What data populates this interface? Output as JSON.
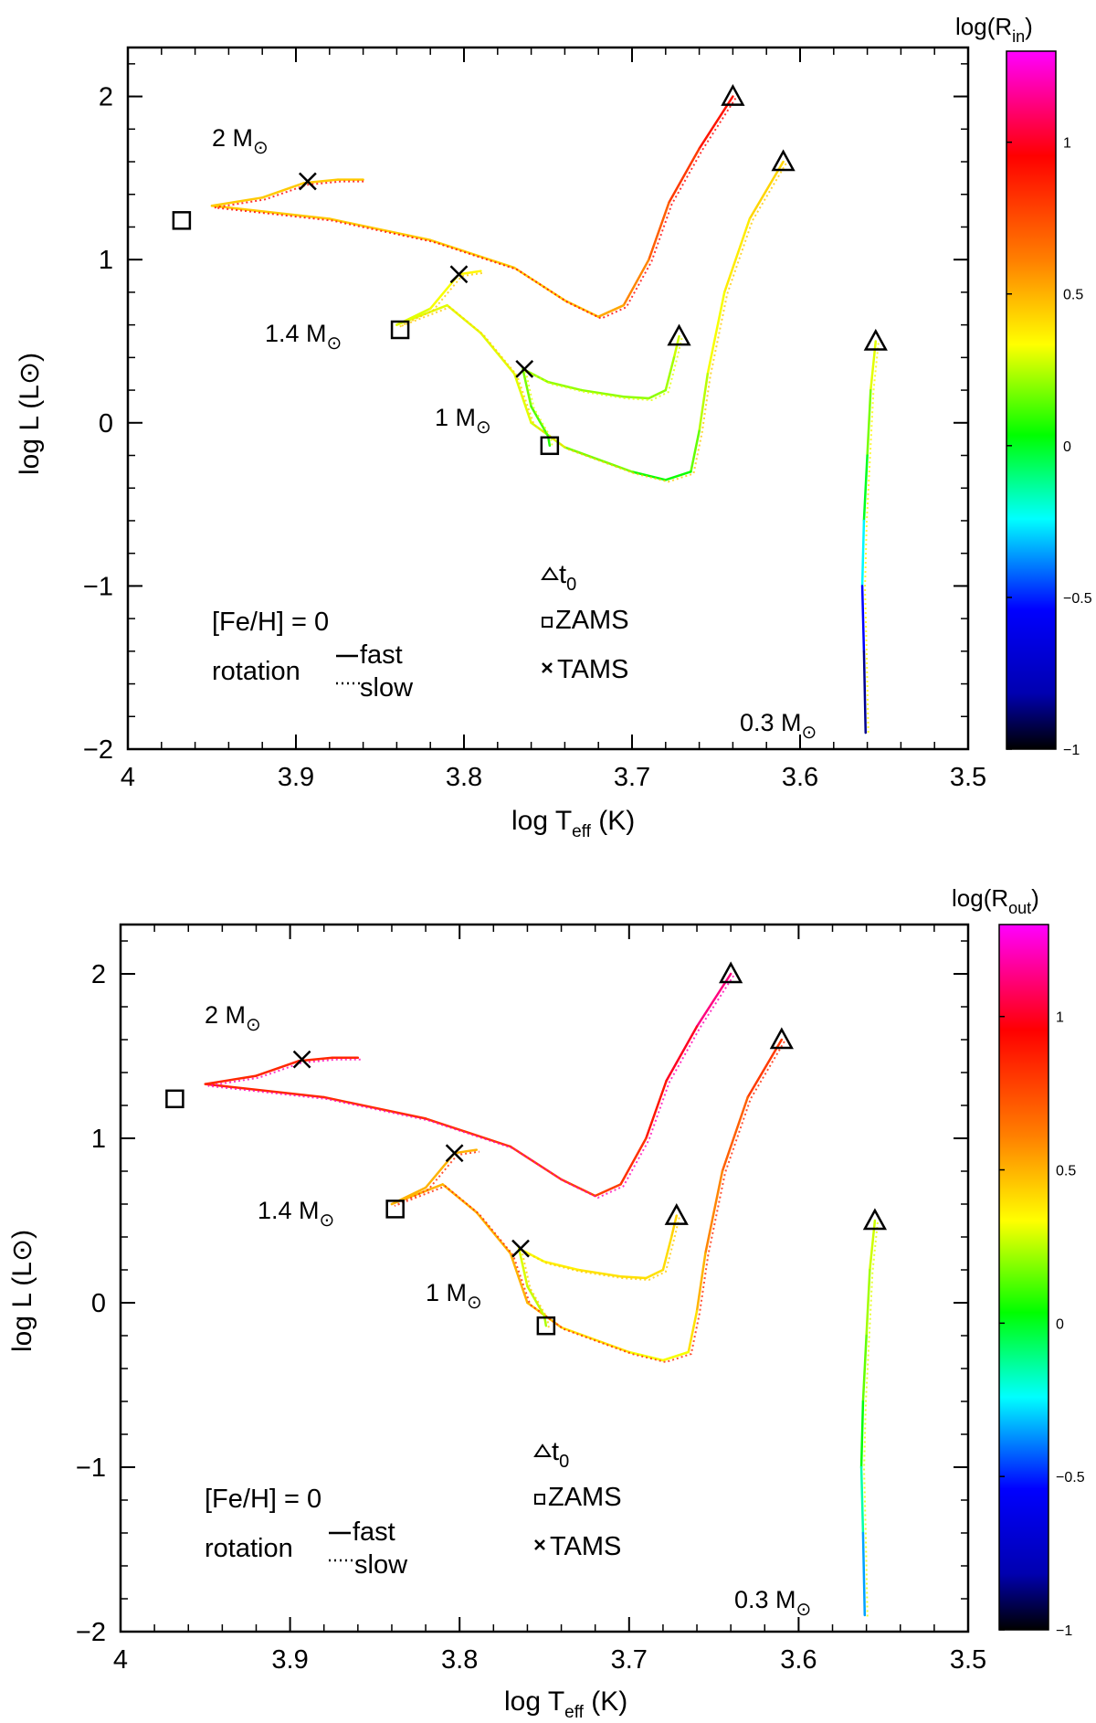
{
  "chart_data": [
    {
      "type": "line",
      "panel": "top",
      "xlabel_main": "log T",
      "xlabel_sub": "eff",
      "xlabel_unit": " (K)",
      "ylabel_main": "log L (L",
      "ylabel_tail": ")",
      "xlim": [
        4.0,
        3.5
      ],
      "ylim": [
        -2,
        2.3
      ],
      "xticks": [
        4,
        3.9,
        3.8,
        3.7,
        3.6,
        3.5
      ],
      "xtick_labels": [
        "4",
        "3.9",
        "3.8",
        "3.7",
        "3.6",
        "3.5"
      ],
      "yticks": [
        -2,
        -1,
        0,
        1,
        2
      ],
      "ytick_labels": [
        "−2",
        "−1",
        "0",
        "1",
        "2"
      ],
      "colorbar": {
        "label_main": "log(R",
        "label_sub": "in",
        "label_tail": ")",
        "range": [
          -1,
          1.3
        ],
        "ticks": [
          -1,
          -0.5,
          0,
          0.5,
          1
        ],
        "tick_labels": [
          "−1",
          "−0.5",
          "0",
          "0.5",
          "1"
        ]
      },
      "series": [
        {
          "name": "2 Msun",
          "label": "2 M",
          "points": [
            [
              3.64,
              2.0
            ],
            [
              3.66,
              1.68
            ],
            [
              3.678,
              1.35
            ],
            [
              3.69,
              1.0
            ],
            [
              3.705,
              0.72
            ],
            [
              3.72,
              0.65
            ],
            [
              3.74,
              0.75
            ],
            [
              3.77,
              0.95
            ],
            [
              3.82,
              1.12
            ],
            [
              3.88,
              1.25
            ],
            [
              3.95,
              1.33
            ],
            [
              3.92,
              1.38
            ],
            [
              3.895,
              1.47
            ],
            [
              3.875,
              1.49
            ],
            [
              3.86,
              1.49
            ]
          ],
          "cvals": [
            0.95,
            0.85,
            0.75,
            0.65,
            0.55,
            0.5,
            0.45,
            0.45,
            0.45,
            0.45,
            0.45,
            0.45,
            0.45,
            0.45,
            0.45
          ],
          "zams": [
            3.968,
            1.24
          ],
          "tams": [
            3.893,
            1.48
          ],
          "t0": [
            3.64,
            2.0
          ]
        },
        {
          "name": "1.4 Msun",
          "label": "1.4 M",
          "points": [
            [
              3.61,
              1.6
            ],
            [
              3.63,
              1.25
            ],
            [
              3.645,
              0.8
            ],
            [
              3.655,
              0.3
            ],
            [
              3.66,
              -0.05
            ],
            [
              3.665,
              -0.3
            ],
            [
              3.68,
              -0.35
            ],
            [
              3.7,
              -0.3
            ],
            [
              3.74,
              -0.15
            ],
            [
              3.76,
              0.0
            ],
            [
              3.77,
              0.3
            ],
            [
              3.79,
              0.55
            ],
            [
              3.81,
              0.72
            ],
            [
              3.84,
              0.6
            ],
            [
              3.82,
              0.7
            ],
            [
              3.803,
              0.91
            ],
            [
              3.79,
              0.93
            ]
          ],
          "cvals": [
            0.45,
            0.4,
            0.35,
            0.3,
            0.2,
            0.1,
            0.0,
            0.1,
            0.25,
            0.3,
            0.3,
            0.3,
            0.3,
            0.3,
            0.3,
            0.35,
            0.35
          ],
          "zams": [
            3.838,
            0.57
          ],
          "tams": [
            3.803,
            0.91
          ],
          "t0": [
            3.61,
            1.6
          ]
        },
        {
          "name": "1 Msun",
          "label": "1 M",
          "points": [
            [
              3.672,
              0.53
            ],
            [
              3.675,
              0.4
            ],
            [
              3.68,
              0.2
            ],
            [
              3.69,
              0.15
            ],
            [
              3.705,
              0.16
            ],
            [
              3.73,
              0.2
            ],
            [
              3.75,
              0.25
            ],
            [
              3.765,
              0.33
            ],
            [
              3.76,
              0.1
            ],
            [
              3.75,
              -0.08
            ],
            [
              3.749,
              -0.14
            ]
          ],
          "cvals": [
            0.3,
            0.25,
            0.2,
            0.2,
            0.2,
            0.2,
            0.2,
            0.2,
            0.15,
            0.1,
            0.05
          ],
          "zams": [
            3.749,
            -0.14
          ],
          "tams": [
            3.764,
            0.33
          ],
          "t0": [
            3.672,
            0.53
          ]
        },
        {
          "name": "0.3 Msun",
          "label": "0.3 M",
          "points": [
            [
              3.555,
              0.5
            ],
            [
              3.558,
              0.2
            ],
            [
              3.56,
              -0.2
            ],
            [
              3.562,
              -0.6
            ],
            [
              3.563,
              -1.0
            ],
            [
              3.562,
              -1.4
            ],
            [
              3.561,
              -1.9
            ]
          ],
          "cvals": [
            0.35,
            0.25,
            0.1,
            -0.1,
            -0.4,
            -0.7,
            -1.0
          ],
          "zams": null,
          "tams": null,
          "t0": [
            3.555,
            0.5
          ]
        }
      ]
    },
    {
      "type": "line",
      "panel": "bottom",
      "xlabel_main": "log T",
      "xlabel_sub": "eff",
      "xlabel_unit": " (K)",
      "ylabel_main": "log L (L",
      "ylabel_tail": ")",
      "xlim": [
        4.0,
        3.5
      ],
      "ylim": [
        -2,
        2.3
      ],
      "xticks": [
        4,
        3.9,
        3.8,
        3.7,
        3.6,
        3.5
      ],
      "xtick_labels": [
        "4",
        "3.9",
        "3.8",
        "3.7",
        "3.6",
        "3.5"
      ],
      "yticks": [
        -2,
        -1,
        0,
        1,
        2
      ],
      "ytick_labels": [
        "−2",
        "−1",
        "0",
        "1",
        "2"
      ],
      "colorbar": {
        "label_main": "log(R",
        "label_sub": "out",
        "label_tail": ")",
        "range": [
          -1,
          1.3
        ],
        "ticks": [
          -1,
          -0.5,
          0,
          0.5,
          1
        ],
        "tick_labels": [
          "−1",
          "−0.5",
          "0",
          "0.5",
          "1"
        ]
      },
      "series": [
        {
          "name": "2 Msun",
          "label": "2 M",
          "points": [
            [
              3.64,
              2.0
            ],
            [
              3.66,
              1.68
            ],
            [
              3.678,
              1.35
            ],
            [
              3.69,
              1.0
            ],
            [
              3.705,
              0.72
            ],
            [
              3.72,
              0.65
            ],
            [
              3.74,
              0.75
            ],
            [
              3.77,
              0.95
            ],
            [
              3.82,
              1.12
            ],
            [
              3.88,
              1.25
            ],
            [
              3.95,
              1.33
            ],
            [
              3.92,
              1.38
            ],
            [
              3.895,
              1.47
            ],
            [
              3.875,
              1.49
            ],
            [
              3.86,
              1.49
            ]
          ],
          "cvals": [
            1.2,
            1.05,
            0.95,
            0.85,
            0.8,
            0.78,
            0.78,
            0.8,
            0.82,
            0.85,
            0.85,
            0.85,
            0.85,
            0.85,
            0.85
          ],
          "zams": [
            3.968,
            1.24
          ],
          "tams": [
            3.893,
            1.48
          ],
          "t0": [
            3.64,
            2.0
          ]
        },
        {
          "name": "1.4 Msun",
          "label": "1.4 M",
          "points": [
            [
              3.61,
              1.6
            ],
            [
              3.63,
              1.25
            ],
            [
              3.645,
              0.8
            ],
            [
              3.655,
              0.3
            ],
            [
              3.66,
              -0.05
            ],
            [
              3.665,
              -0.3
            ],
            [
              3.68,
              -0.35
            ],
            [
              3.7,
              -0.3
            ],
            [
              3.74,
              -0.15
            ],
            [
              3.76,
              0.0
            ],
            [
              3.77,
              0.3
            ],
            [
              3.79,
              0.55
            ],
            [
              3.81,
              0.72
            ],
            [
              3.84,
              0.6
            ],
            [
              3.82,
              0.7
            ],
            [
              3.803,
              0.91
            ],
            [
              3.79,
              0.93
            ]
          ],
          "cvals": [
            0.85,
            0.75,
            0.65,
            0.55,
            0.45,
            0.35,
            0.3,
            0.35,
            0.45,
            0.5,
            0.5,
            0.5,
            0.5,
            0.5,
            0.5,
            0.5,
            0.5
          ],
          "zams": [
            3.838,
            0.57
          ],
          "tams": [
            3.803,
            0.91
          ],
          "t0": [
            3.61,
            1.6
          ]
        },
        {
          "name": "1 Msun",
          "label": "1 M",
          "points": [
            [
              3.672,
              0.53
            ],
            [
              3.675,
              0.4
            ],
            [
              3.68,
              0.2
            ],
            [
              3.69,
              0.15
            ],
            [
              3.705,
              0.16
            ],
            [
              3.73,
              0.2
            ],
            [
              3.75,
              0.25
            ],
            [
              3.765,
              0.33
            ],
            [
              3.76,
              0.1
            ],
            [
              3.75,
              -0.08
            ],
            [
              3.749,
              -0.14
            ]
          ],
          "cvals": [
            0.45,
            0.42,
            0.4,
            0.4,
            0.4,
            0.38,
            0.35,
            0.3,
            0.28,
            0.25,
            0.22
          ],
          "zams": [
            3.749,
            -0.14
          ],
          "tams": [
            3.764,
            0.33
          ],
          "t0": [
            3.672,
            0.53
          ]
        },
        {
          "name": "0.3 Msun",
          "label": "0.3 M",
          "points": [
            [
              3.555,
              0.5
            ],
            [
              3.558,
              0.2
            ],
            [
              3.56,
              -0.2
            ],
            [
              3.562,
              -0.6
            ],
            [
              3.563,
              -1.0
            ],
            [
              3.562,
              -1.4
            ],
            [
              3.561,
              -1.9
            ]
          ],
          "cvals": [
            0.3,
            0.25,
            0.2,
            0.1,
            -0.05,
            -0.25,
            -0.45
          ],
          "zams": null,
          "tams": null,
          "t0": [
            3.555,
            0.5
          ]
        }
      ]
    }
  ],
  "legend": {
    "feh": "[Fe/H] = 0",
    "rotation": "rotation",
    "fast": "fast",
    "slow": "slow",
    "t0_main": "t",
    "t0_sub": "0",
    "zams": "ZAMS",
    "tams": "TAMS"
  },
  "colors": {
    "axis": "#000000",
    "colormap": [
      "#000000",
      "#0000ff",
      "#00ffff",
      "#00ff00",
      "#ffff00",
      "#ff8000",
      "#ff0000",
      "#ff00ff"
    ]
  }
}
